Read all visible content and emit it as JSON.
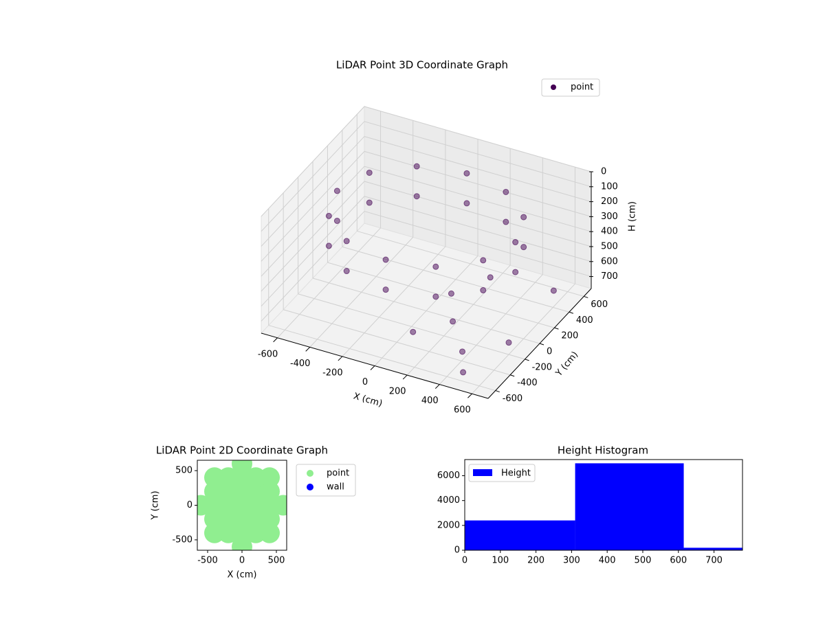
{
  "chart_data": [
    {
      "type": "scatter3d",
      "title": "LiDAR Point 3D Coordinate Graph",
      "xlabel": "X (cm)",
      "ylabel": "Y (cm)",
      "zlabel": "H (cm)",
      "xlim": [
        -700,
        700
      ],
      "ylim": [
        -700,
        700
      ],
      "zlim": [
        0,
        780
      ],
      "zinverted": true,
      "xticks": [
        -600,
        -400,
        -200,
        0,
        200,
        400,
        600
      ],
      "yticks": [
        -600,
        -400,
        -200,
        0,
        200,
        400,
        600
      ],
      "zticks": [
        0,
        100,
        200,
        300,
        400,
        500,
        600,
        700
      ],
      "grid": true,
      "legend": "upper right",
      "series": [
        {
          "name": "point",
          "color": "#440154",
          "x": [
            550,
            476,
            275,
            0,
            -275,
            -476,
            -550,
            -476,
            -275,
            0,
            275,
            476,
            550,
            476,
            275,
            0,
            -275,
            -476,
            -550,
            -476,
            -275,
            0,
            275,
            476,
            300,
            450,
            600,
            200,
            500,
            650,
            100,
            350
          ],
          "y": [
            0,
            275,
            476,
            550,
            476,
            275,
            0,
            -275,
            -476,
            -550,
            -476,
            -275,
            0,
            275,
            476,
            550,
            476,
            275,
            0,
            -275,
            -476,
            -550,
            -476,
            -275,
            -300,
            -500,
            -200,
            -100,
            -600,
            300,
            -400,
            100
          ],
          "z": [
            150,
            150,
            150,
            150,
            150,
            150,
            150,
            150,
            150,
            150,
            150,
            150,
            350,
            350,
            350,
            350,
            350,
            350,
            350,
            350,
            350,
            350,
            350,
            350,
            600,
            650,
            700,
            550,
            720,
            600,
            680,
            500
          ]
        }
      ]
    },
    {
      "type": "scatter",
      "title": "LiDAR Point 2D Coordinate Graph",
      "xlabel": "X (cm)",
      "ylabel": "Y (cm)",
      "xlim": [
        -650,
        650
      ],
      "ylim": [
        -650,
        650
      ],
      "xticks": [
        -500,
        0,
        500
      ],
      "yticks": [
        -500,
        0,
        500
      ],
      "legend": "outside right",
      "series": [
        {
          "name": "point",
          "color": "#90ee90",
          "x": [
            -600,
            600,
            -400,
            -400,
            -400,
            -400,
            -400,
            400,
            400,
            400,
            400,
            400,
            -200,
            -200,
            -200,
            -200,
            -200,
            200,
            200,
            200,
            200,
            200,
            0,
            0,
            0,
            0,
            0,
            0,
            0
          ],
          "y": [
            0,
            0,
            -400,
            -200,
            0,
            200,
            400,
            -400,
            -200,
            0,
            200,
            400,
            -400,
            -200,
            0,
            200,
            400,
            -400,
            -200,
            0,
            200,
            400,
            -600,
            -400,
            -200,
            0,
            200,
            400,
            600
          ]
        },
        {
          "name": "wall",
          "color": "#0000ff",
          "x": [],
          "y": []
        }
      ]
    },
    {
      "type": "histogram",
      "title": "Height Histogram",
      "bins": [
        0,
        310,
        615,
        780
      ],
      "values": [
        2400,
        7000,
        200
      ],
      "series_name": "Height",
      "color": "#0000ff",
      "xlim": [
        0,
        780
      ],
      "ylim": [
        0,
        7300
      ],
      "xticks": [
        0,
        100,
        200,
        300,
        400,
        500,
        600,
        700
      ],
      "yticks": [
        0,
        2000,
        4000,
        6000
      ],
      "legend": "upper left"
    }
  ]
}
